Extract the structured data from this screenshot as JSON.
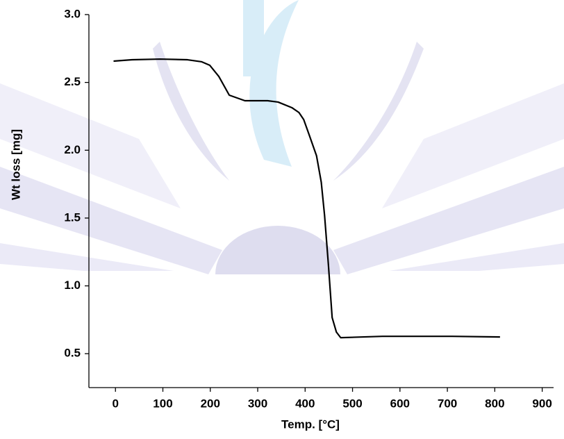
{
  "chart_data": {
    "type": "line",
    "x_label": "Temp. [°C]",
    "y_label": "Wt loss [mg]",
    "xlim": [
      -56,
      924
    ],
    "ylim": [
      0.25,
      3.0
    ],
    "xticks": [
      0,
      100,
      200,
      300,
      400,
      500,
      600,
      700,
      800,
      900
    ],
    "yticks": [
      0.5,
      {
        "value": 1.0,
        "label": "1.0"
      },
      1.5,
      {
        "value": 2.0,
        "label": "2.0"
      },
      2.5,
      {
        "value": 3.0,
        "label": "3.0"
      }
    ],
    "grid": false,
    "series": [
      {
        "color": "#000000",
        "x": [
          -4,
          35,
          94,
          152,
          182,
          199,
          218,
          240,
          273,
          321,
          343,
          372,
          387,
          397,
          409,
          424,
          434,
          441,
          449,
          457,
          466,
          475,
          563,
          710,
          811
        ],
        "values": [
          2.657,
          2.667,
          2.672,
          2.667,
          2.652,
          2.626,
          2.544,
          2.406,
          2.365,
          2.365,
          2.355,
          2.314,
          2.278,
          2.226,
          2.109,
          1.96,
          1.765,
          1.52,
          1.16,
          0.766,
          0.659,
          0.618,
          0.628,
          0.628,
          0.623
        ]
      }
    ]
  }
}
